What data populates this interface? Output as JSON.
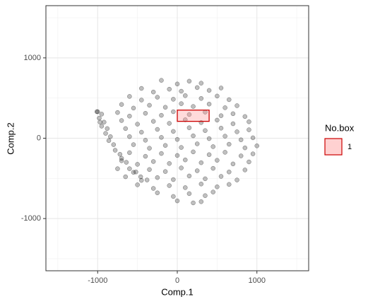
{
  "chart_data": {
    "type": "scatter",
    "x_label": "Comp.1",
    "y_label": "Comp.2",
    "xlim": [
      -1650,
      1650
    ],
    "ylim": [
      -1650,
      1650
    ],
    "xticks": [
      -1000,
      0,
      1000
    ],
    "yticks": [
      -1000,
      0,
      1000
    ],
    "x_minor_ticks": [
      -1500,
      -500,
      500,
      1500
    ],
    "y_minor_ticks": [
      -1500,
      -500,
      500,
      1500
    ],
    "grid": true,
    "point_color": "#000000",
    "x": [
      -200,
      0,
      150,
      300,
      -450,
      -300,
      -100,
      50,
      250,
      400,
      550,
      -600,
      -450,
      -250,
      -50,
      100,
      300,
      500,
      650,
      -700,
      -550,
      -350,
      -150,
      50,
      200,
      400,
      600,
      750,
      -750,
      -600,
      -400,
      -200,
      -50,
      150,
      350,
      550,
      700,
      850,
      -700,
      -500,
      -300,
      -100,
      100,
      300,
      500,
      700,
      900,
      -650,
      -450,
      -250,
      -50,
      150,
      350,
      550,
      750,
      900,
      -600,
      -400,
      -200,
      0,
      200,
      400,
      600,
      800,
      950,
      -550,
      -350,
      -150,
      50,
      250,
      450,
      650,
      850,
      1000,
      -600,
      -400,
      -200,
      0,
      200,
      400,
      600,
      800,
      950,
      -700,
      -500,
      -300,
      -100,
      100,
      300,
      500,
      700,
      900,
      -750,
      -550,
      -350,
      -150,
      50,
      250,
      450,
      650,
      850,
      -650,
      -450,
      -250,
      -50,
      150,
      350,
      550,
      750,
      -500,
      -300,
      -100,
      100,
      300,
      500,
      650,
      -250,
      -50,
      150,
      350,
      450,
      0,
      200,
      300,
      -1000,
      -950,
      -980,
      -920,
      -950,
      -880,
      -900,
      -840,
      -860,
      -800,
      -780,
      -720,
      -700,
      -640,
      -600,
      -520,
      -460,
      -380,
      -1010,
      -970
    ],
    "values": [
      720,
      675,
      710,
      685,
      620,
      575,
      610,
      585,
      630,
      595,
      625,
      520,
      475,
      510,
      485,
      530,
      495,
      525,
      480,
      420,
      375,
      410,
      385,
      430,
      395,
      425,
      380,
      405,
      320,
      275,
      310,
      285,
      330,
      295,
      325,
      280,
      305,
      270,
      220,
      175,
      210,
      185,
      230,
      195,
      225,
      180,
      205,
      120,
      75,
      110,
      85,
      130,
      95,
      125,
      80,
      105,
      20,
      -25,
      10,
      -15,
      30,
      -5,
      25,
      -20,
      5,
      -80,
      -125,
      -90,
      -115,
      -70,
      -105,
      -75,
      -120,
      -95,
      -180,
      -225,
      -190,
      -215,
      -170,
      -205,
      -175,
      -220,
      -195,
      -280,
      -325,
      -290,
      -315,
      -270,
      -305,
      -275,
      -320,
      -295,
      -380,
      -425,
      -390,
      -415,
      -370,
      -405,
      -375,
      -420,
      -395,
      -480,
      -525,
      -490,
      -515,
      -470,
      -505,
      -475,
      -520,
      -580,
      -625,
      -590,
      -615,
      -570,
      -605,
      -575,
      -680,
      -725,
      -690,
      -715,
      -670,
      -780,
      -805,
      -790,
      330,
      300,
      250,
      200,
      150,
      120,
      60,
      20,
      -30,
      -80,
      -150,
      -200,
      -250,
      -300,
      -380,
      -420,
      -480,
      -520,
      330,
      200
    ],
    "box": {
      "xmin": 0,
      "xmax": 400,
      "ymin": 210,
      "ymax": 350,
      "color": "#cc0000",
      "fill": "#ff9999"
    },
    "legend": {
      "title": "No.box",
      "labels": [
        "1"
      ]
    }
  }
}
